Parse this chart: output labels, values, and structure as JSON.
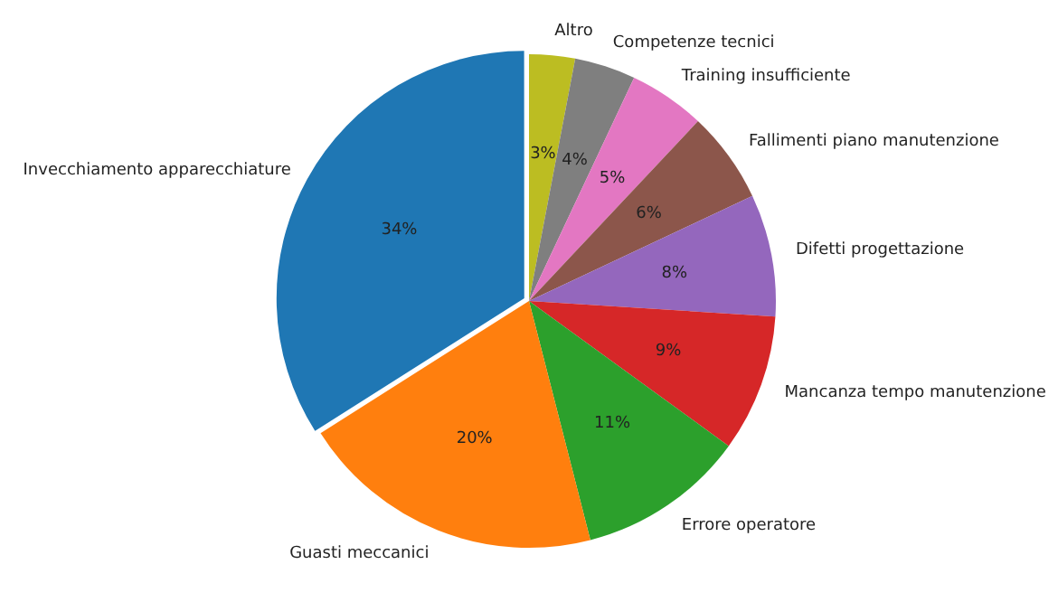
{
  "chart_data": {
    "type": "pie",
    "categories": [
      "Invecchiamento apparecchiature",
      "Guasti meccanici",
      "Errore operatore",
      "Mancanza tempo manutenzione",
      "Difetti progettazione",
      "Fallimenti piano manutenzione",
      "Training insufficiente",
      "Competenze tecnici",
      "Altro"
    ],
    "values": [
      34,
      20,
      11,
      9,
      8,
      6,
      5,
      4,
      3
    ],
    "value_labels": [
      "34%",
      "20%",
      "11%",
      "9%",
      "8%",
      "6%",
      "5%",
      "4%",
      "3%"
    ],
    "colors": [
      "#1f77b4",
      "#ff7f0e",
      "#2ca02c",
      "#d62728",
      "#9467bd",
      "#8c564b",
      "#e377c2",
      "#7f7f7f",
      "#bcbd22"
    ],
    "legend": false
  }
}
